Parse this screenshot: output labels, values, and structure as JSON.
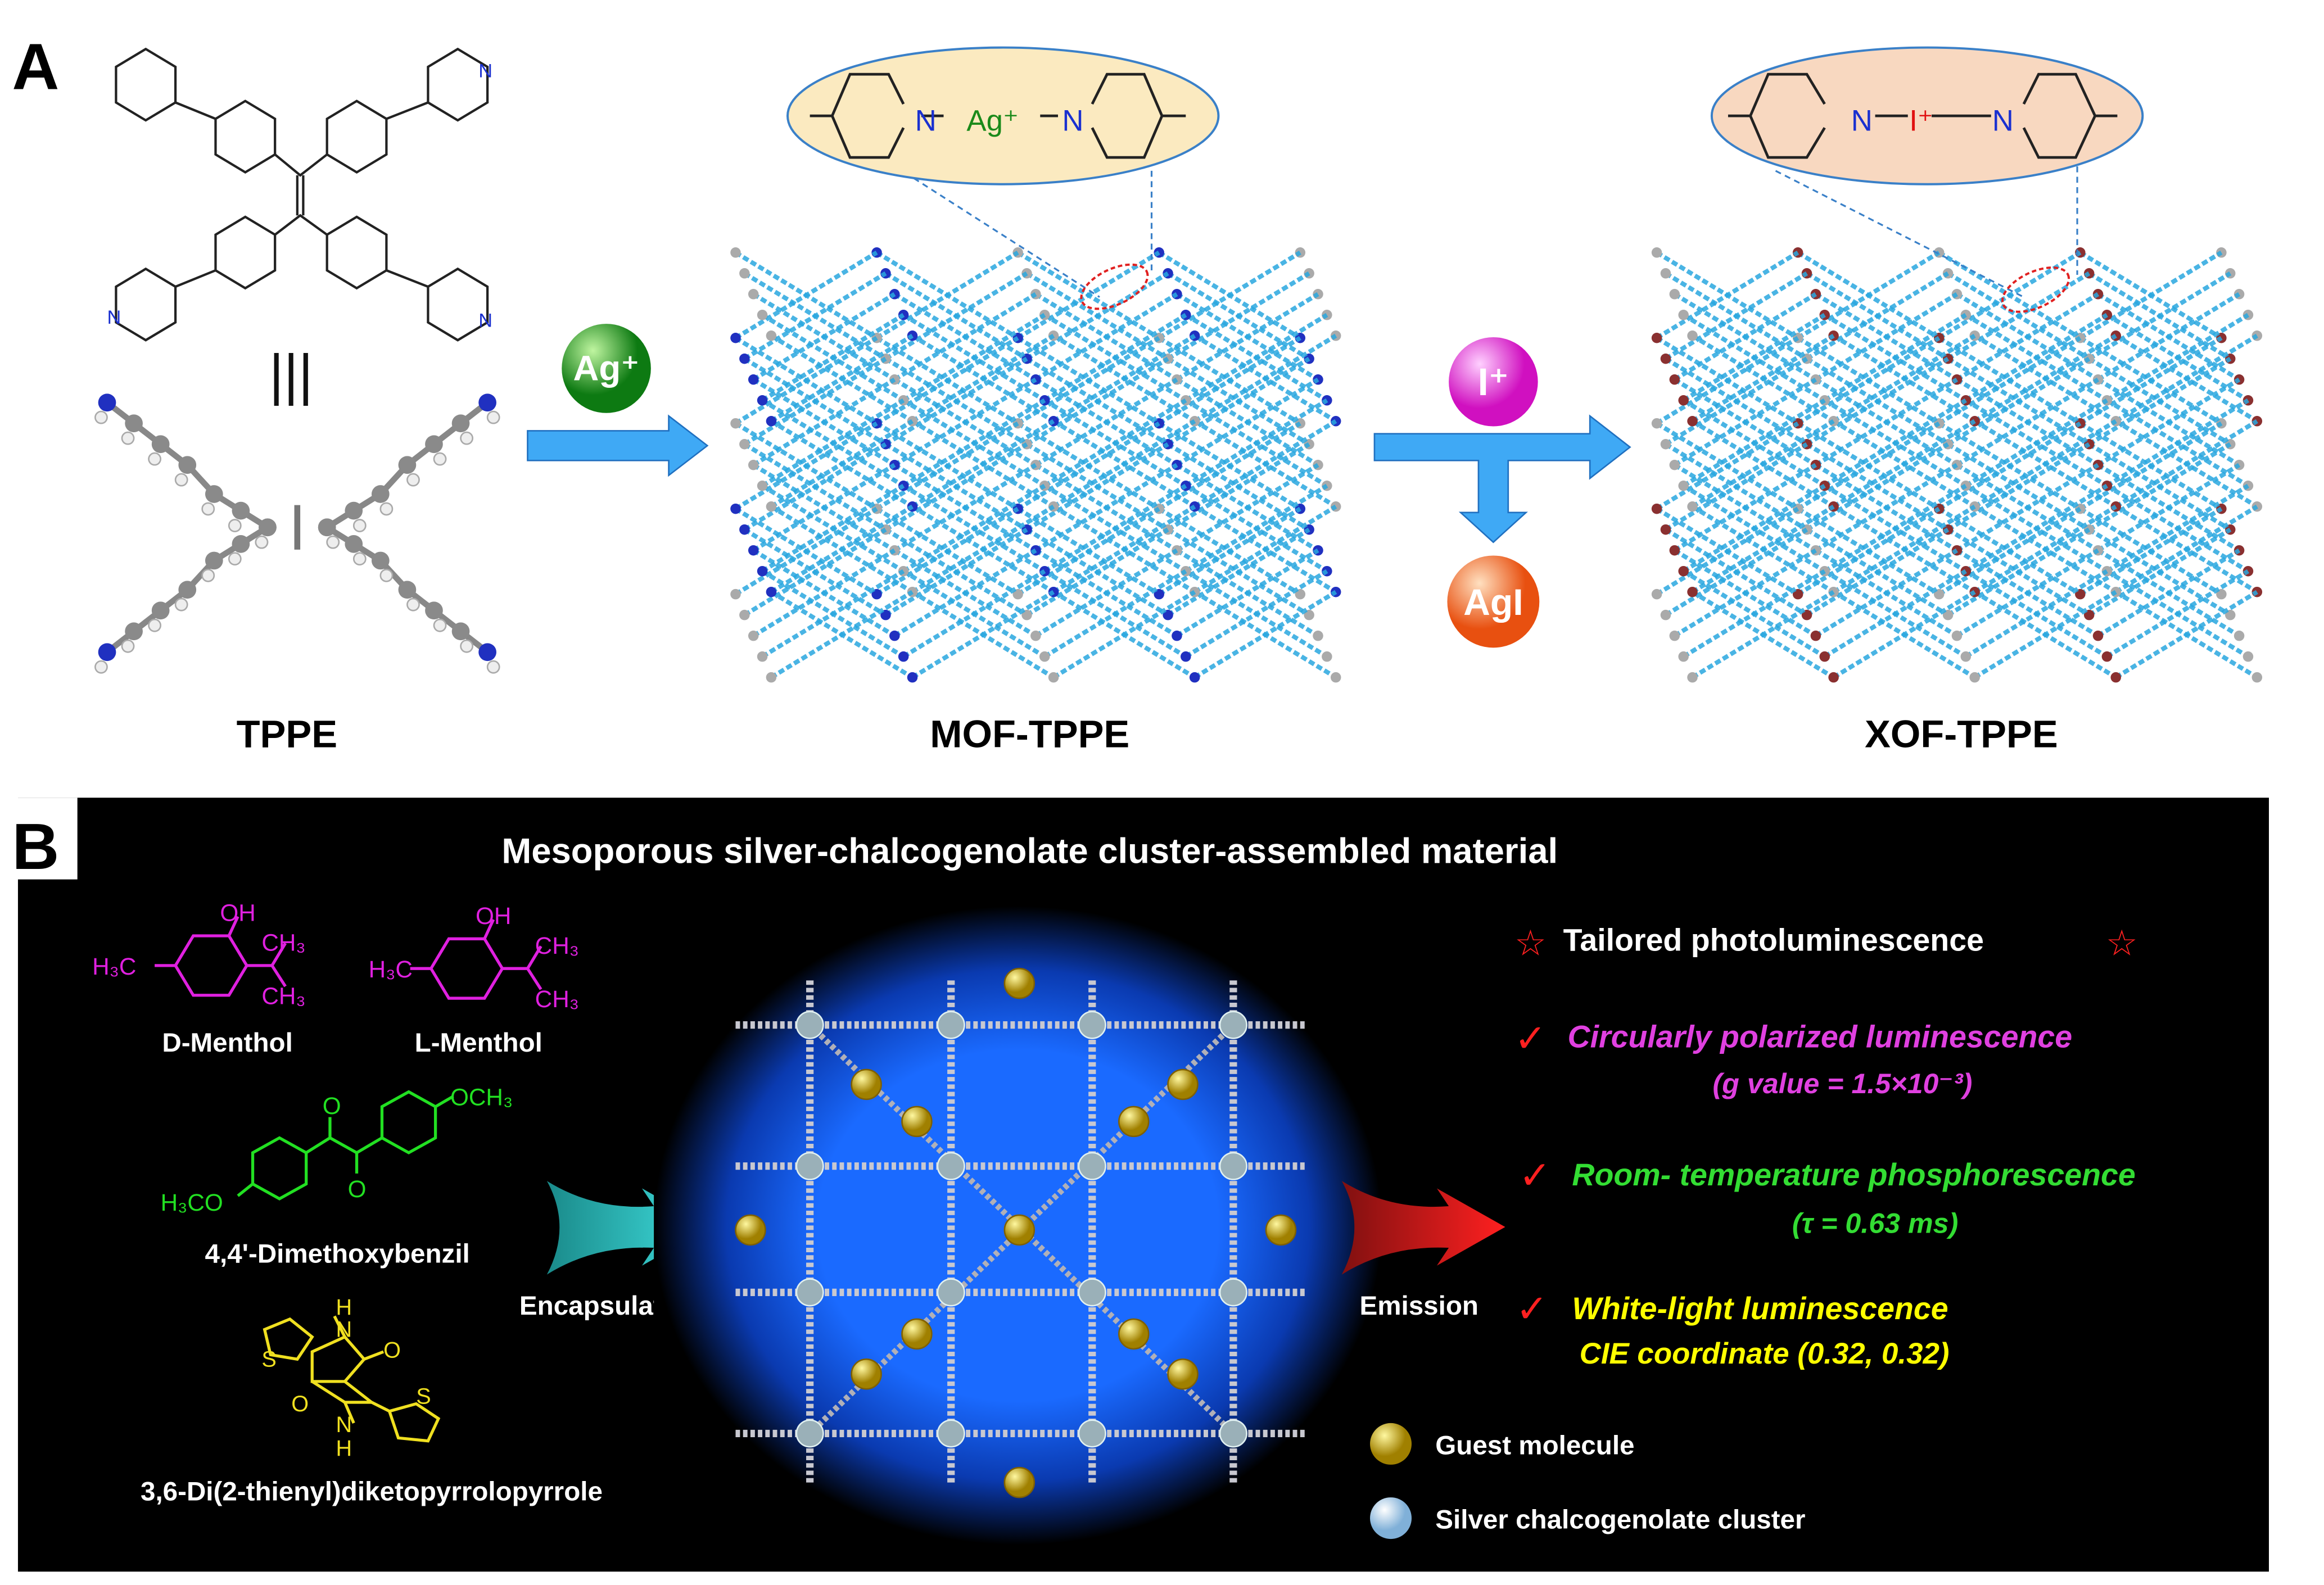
{
  "panel_a": {
    "letter": "A",
    "tppe_label": "TPPE",
    "tppe_atoms": {
      "n": "N",
      "equiv": "|||"
    },
    "ag_ion": "Ag⁺",
    "i_ion": "I⁺",
    "agi_product": "AgI",
    "mof_label": "MOF-TPPE",
    "xof_label": "XOF-TPPE",
    "mof_zoom": {
      "n_left": "N",
      "metal": "Ag⁺",
      "n_right": "N"
    },
    "xof_zoom": {
      "n_left": "N",
      "halogen": "I⁺",
      "n_right": "N"
    }
  },
  "panel_b": {
    "letter": "B",
    "title": "Mesoporous silver-chalcogenolate cluster-assembled material",
    "guests": [
      {
        "name": "D-Menthol",
        "atoms": [
          "OH",
          "H₃C",
          "CH₃",
          "CH₃"
        ]
      },
      {
        "name": "L-Menthol",
        "atoms": [
          "OH",
          "H₃C",
          "CH₃",
          "CH₃"
        ]
      },
      {
        "name": "4,4'-Dimethoxybenzil",
        "atoms": [
          "O",
          "O",
          "OCH₃",
          "H₃CO"
        ]
      },
      {
        "name": "3,6-Di(2-thienyl)diketopyrrolopyrrole",
        "atoms": [
          "H",
          "N",
          "O",
          "S",
          "O",
          "N",
          "H",
          "S"
        ]
      }
    ],
    "encapsulation_label": "Encapsulation",
    "emission_label": "Emission",
    "headline": "Tailored photoluminescence",
    "properties": [
      {
        "title": "Circularly polarized luminescence",
        "detail": "(g value = 1.5×10⁻³)",
        "color": "#e040e0"
      },
      {
        "title": "Room- temperature phosphorescence",
        "detail": "(τ = 0.63 ms)",
        "color": "#33dd33"
      },
      {
        "title": "White-light  luminescence",
        "detail": "CIE coordinate (0.32, 0.32)",
        "color": "#ffff00"
      }
    ],
    "legend": [
      {
        "label": "Guest molecule",
        "color": "#d8c020"
      },
      {
        "label": "Silver chalcogenolate cluster",
        "color": "#b8d8f0"
      }
    ],
    "icons": {
      "star": "star-outline-icon",
      "check": "checkmark-icon"
    }
  },
  "colors": {
    "framework_blue": "#2aa8e0",
    "arrow_blue": "#3fa9f5",
    "ag_green": "#1a9a1a",
    "i_magenta": "#e020d0",
    "agi_orange": "#f07030",
    "mof_oval": "#fbeac0",
    "xof_oval": "#f8d8c0",
    "panel_b_bg": "#000000",
    "glow": "#1060ff"
  }
}
